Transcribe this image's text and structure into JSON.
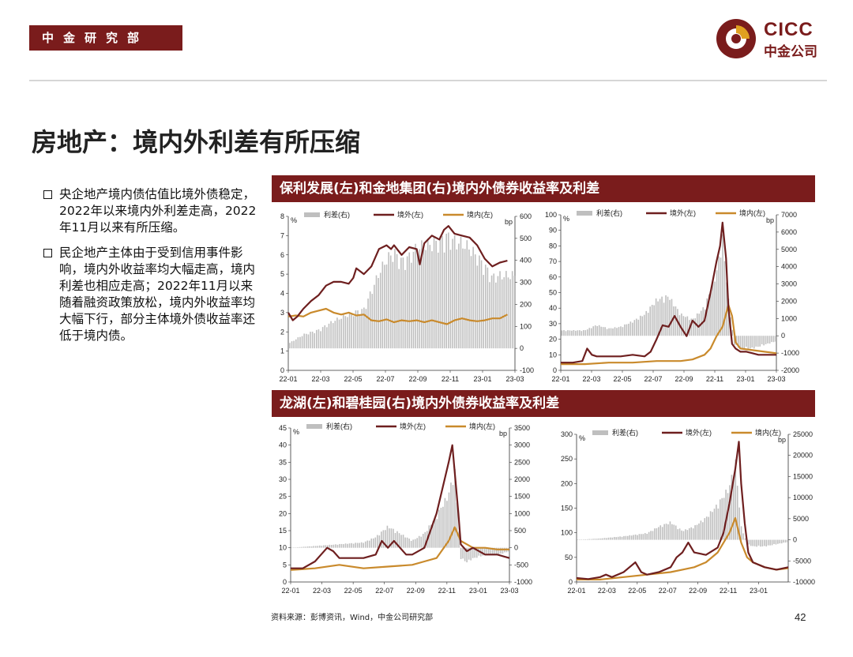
{
  "header": {
    "dept": "中金研究部",
    "logo_en": "CICC",
    "logo_cn": "中金公司"
  },
  "title": "房地产：境内外利差有所压缩",
  "bullets": [
    "央企地产境内债估值比境外债稳定，2022年以来境内外利差走高，2022年11月以来有所压缩。",
    "民企地产主体由于受到信用事件影响，境内外收益率均大幅走高，境内利差也相应走高；2022年11月以来随着融资政策放松，境内外收益率均大幅下行，部分主体境外债收益率还低于境内债。"
  ],
  "banners": {
    "top": "保利发展(左)和金地集团(右)境内外债券收益率及利差",
    "bottom": "龙湖(左)和碧桂园(右)境内外债券收益率及利差"
  },
  "source": "资料来源：彭博资讯，Wind，中金公司研究部",
  "page_number": "42",
  "colors": {
    "brand": "#7a1c1c",
    "offshore": "#6e1f1f",
    "onshore": "#c98a2c",
    "spread": "#bfbfbf"
  },
  "chart_data": [
    {
      "id": "poly",
      "type": "line",
      "series_names": {
        "spread": "利差(右)",
        "offshore": "境外(左)",
        "onshore": "境内(左)"
      },
      "left_unit": "%",
      "right_unit": "bp",
      "ylim": [
        0,
        8
      ],
      "y_ticks": [
        0,
        1,
        2,
        3,
        4,
        5,
        6,
        7,
        8
      ],
      "y2lim": [
        -100,
        600
      ],
      "y2_ticks": [
        -100,
        0,
        100,
        200,
        300,
        400,
        500,
        600
      ],
      "x_ticks": [
        "22-01",
        "22-03",
        "22-05",
        "22-07",
        "22-09",
        "22-11",
        "23-01",
        "23-03"
      ],
      "offshore": [
        [
          0,
          3.0
        ],
        [
          0.3,
          2.6
        ],
        [
          0.6,
          2.8
        ],
        [
          1,
          3.2
        ],
        [
          1.5,
          3.6
        ],
        [
          2,
          3.9
        ],
        [
          2.5,
          4.4
        ],
        [
          3,
          4.6
        ],
        [
          3.5,
          4.6
        ],
        [
          4,
          4.5
        ],
        [
          4.3,
          4.8
        ],
        [
          4.5,
          5.3
        ],
        [
          5,
          5.0
        ],
        [
          5.5,
          5.4
        ],
        [
          6,
          6.3
        ],
        [
          6.5,
          6.5
        ],
        [
          6.8,
          6.3
        ],
        [
          7,
          6.5
        ],
        [
          7.5,
          6.0
        ],
        [
          8,
          6.4
        ],
        [
          8.5,
          6.3
        ],
        [
          8.7,
          5.5
        ],
        [
          9,
          6.6
        ],
        [
          9.5,
          7.0
        ],
        [
          10,
          6.8
        ],
        [
          10.3,
          7.3
        ],
        [
          10.6,
          7.5
        ],
        [
          11,
          7.1
        ],
        [
          11.5,
          7.0
        ],
        [
          12,
          6.9
        ],
        [
          12.5,
          6.5
        ],
        [
          13,
          5.8
        ],
        [
          13.5,
          5.4
        ],
        [
          14,
          5.6
        ],
        [
          14.5,
          5.7
        ]
      ],
      "onshore": [
        [
          0,
          2.8
        ],
        [
          0.5,
          2.85
        ],
        [
          1,
          2.8
        ],
        [
          1.5,
          3.0
        ],
        [
          2,
          3.1
        ],
        [
          2.5,
          3.2
        ],
        [
          3,
          3.0
        ],
        [
          3.5,
          2.9
        ],
        [
          4,
          3.0
        ],
        [
          4.5,
          2.85
        ],
        [
          5,
          2.9
        ],
        [
          5.5,
          2.6
        ],
        [
          6,
          2.55
        ],
        [
          6.5,
          2.65
        ],
        [
          7,
          2.5
        ],
        [
          7.5,
          2.6
        ],
        [
          8,
          2.55
        ],
        [
          8.5,
          2.6
        ],
        [
          9,
          2.5
        ],
        [
          9.5,
          2.6
        ],
        [
          10,
          2.5
        ],
        [
          10.5,
          2.4
        ],
        [
          11,
          2.6
        ],
        [
          11.5,
          2.7
        ],
        [
          12,
          2.6
        ],
        [
          12.5,
          2.55
        ],
        [
          13,
          2.6
        ],
        [
          13.5,
          2.7
        ],
        [
          14,
          2.7
        ],
        [
          14.5,
          2.9
        ]
      ],
      "spread": [
        [
          0,
          20
        ],
        [
          1,
          60
        ],
        [
          2,
          80
        ],
        [
          3,
          120
        ],
        [
          4,
          150
        ],
        [
          5,
          170
        ],
        [
          5.5,
          250
        ],
        [
          6,
          330
        ],
        [
          6.5,
          390
        ],
        [
          7,
          420
        ],
        [
          7.5,
          380
        ],
        [
          8,
          400
        ],
        [
          8.5,
          440
        ],
        [
          9,
          450
        ],
        [
          9.5,
          460
        ],
        [
          10,
          470
        ],
        [
          10.5,
          490
        ],
        [
          11,
          470
        ],
        [
          11.5,
          460
        ],
        [
          12,
          440
        ],
        [
          12.5,
          400
        ],
        [
          13,
          360
        ],
        [
          13.5,
          310
        ],
        [
          14,
          320
        ],
        [
          14.5,
          320
        ]
      ]
    },
    {
      "id": "gemdale",
      "type": "line",
      "series_names": {
        "spread": "利差(右)",
        "offshore": "境外(左)",
        "onshore": "境内(左)"
      },
      "left_unit": "%",
      "right_unit": "bp",
      "ylim": [
        0,
        100
      ],
      "y_ticks": [
        0,
        10,
        20,
        30,
        40,
        50,
        60,
        70,
        80,
        90,
        100
      ],
      "y2lim": [
        -2000,
        7000
      ],
      "y2_ticks": [
        -2000,
        -1000,
        0,
        1000,
        2000,
        3000,
        4000,
        5000,
        6000,
        7000
      ],
      "x_ticks": [
        "22-01",
        "22-03",
        "22-05",
        "22-07",
        "22-09",
        "22-11",
        "23-01",
        "23-03"
      ],
      "offshore": [
        [
          0,
          5
        ],
        [
          1,
          5
        ],
        [
          1.8,
          6
        ],
        [
          2.2,
          14
        ],
        [
          2.6,
          10
        ],
        [
          3,
          9
        ],
        [
          4,
          9
        ],
        [
          5,
          9
        ],
        [
          6,
          10
        ],
        [
          7,
          9
        ],
        [
          7.5,
          12
        ],
        [
          8,
          20
        ],
        [
          8.5,
          29
        ],
        [
          9,
          28
        ],
        [
          9.5,
          35
        ],
        [
          10,
          28
        ],
        [
          10.5,
          22
        ],
        [
          11,
          32
        ],
        [
          11.5,
          28
        ],
        [
          12,
          32
        ],
        [
          12.5,
          50
        ],
        [
          13,
          70
        ],
        [
          13.3,
          80
        ],
        [
          13.5,
          95
        ],
        [
          13.8,
          72
        ],
        [
          14,
          40
        ],
        [
          14.3,
          17
        ],
        [
          14.6,
          14
        ],
        [
          15,
          12
        ],
        [
          15.5,
          12
        ],
        [
          16,
          11
        ],
        [
          16.5,
          10
        ],
        [
          17,
          10
        ],
        [
          17.5,
          10
        ],
        [
          18,
          10
        ]
      ],
      "onshore": [
        [
          0,
          4
        ],
        [
          2,
          4
        ],
        [
          4,
          5
        ],
        [
          6,
          5
        ],
        [
          8,
          6
        ],
        [
          10,
          6
        ],
        [
          11,
          7
        ],
        [
          12,
          10
        ],
        [
          12.5,
          14
        ],
        [
          13,
          22
        ],
        [
          13.5,
          28
        ],
        [
          14,
          42
        ],
        [
          14.3,
          35
        ],
        [
          14.6,
          18
        ],
        [
          15,
          14
        ],
        [
          16,
          13
        ],
        [
          17,
          12
        ],
        [
          18,
          11
        ]
      ],
      "spread": [
        [
          0,
          300
        ],
        [
          2,
          300
        ],
        [
          3,
          600
        ],
        [
          4,
          400
        ],
        [
          5,
          500
        ],
        [
          6,
          800
        ],
        [
          7,
          1200
        ],
        [
          8,
          2000
        ],
        [
          9,
          2200
        ],
        [
          10,
          1200
        ],
        [
          11,
          900
        ],
        [
          12,
          1600
        ],
        [
          13,
          3500
        ],
        [
          13.5,
          5500
        ],
        [
          14,
          2000
        ],
        [
          14.5,
          -500
        ],
        [
          15,
          -700
        ],
        [
          16,
          -700
        ],
        [
          17,
          -500
        ],
        [
          18,
          -300
        ]
      ]
    },
    {
      "id": "longfor",
      "type": "line",
      "series_names": {
        "spread": "利差(右)",
        "offshore": "境外(左)",
        "onshore": "境内(左)"
      },
      "left_unit": "%",
      "right_unit": "bp",
      "ylim": [
        0,
        45
      ],
      "y_ticks": [
        0,
        5,
        10,
        15,
        20,
        25,
        30,
        35,
        40,
        45
      ],
      "y2lim": [
        -1000,
        3500
      ],
      "y2_ticks": [
        -1000,
        -500,
        0,
        500,
        1000,
        1500,
        2000,
        2500,
        3000,
        3500
      ],
      "x_ticks": [
        "22-01",
        "22-03",
        "22-05",
        "22-07",
        "22-09",
        "22-11",
        "23-01",
        "23-03"
      ],
      "offshore": [
        [
          0,
          4
        ],
        [
          1,
          4
        ],
        [
          2,
          6
        ],
        [
          2.5,
          8
        ],
        [
          3,
          10
        ],
        [
          3.5,
          9
        ],
        [
          4,
          7
        ],
        [
          5,
          7
        ],
        [
          6,
          7
        ],
        [
          7,
          8
        ],
        [
          7.5,
          12
        ],
        [
          8,
          10
        ],
        [
          8.5,
          12
        ],
        [
          9,
          10
        ],
        [
          9.5,
          8
        ],
        [
          10,
          8
        ],
        [
          11,
          10
        ],
        [
          12,
          20
        ],
        [
          13,
          35
        ],
        [
          13.3,
          40
        ],
        [
          13.8,
          20
        ],
        [
          14,
          11
        ],
        [
          14.5,
          9
        ],
        [
          15,
          10
        ],
        [
          16,
          8
        ],
        [
          17,
          8
        ],
        [
          18,
          7
        ]
      ],
      "onshore": [
        [
          0,
          3.5
        ],
        [
          2,
          4
        ],
        [
          4,
          5
        ],
        [
          6,
          4
        ],
        [
          8,
          4.5
        ],
        [
          10,
          5
        ],
        [
          11,
          6
        ],
        [
          12,
          7
        ],
        [
          13,
          12
        ],
        [
          13.5,
          16
        ],
        [
          14,
          12
        ],
        [
          14.5,
          11
        ],
        [
          15,
          10
        ],
        [
          16,
          10
        ],
        [
          17,
          9.5
        ],
        [
          18,
          9.5
        ]
      ],
      "spread": [
        [
          0,
          0
        ],
        [
          2,
          50
        ],
        [
          4,
          100
        ],
        [
          6,
          150
        ],
        [
          7,
          300
        ],
        [
          8,
          600
        ],
        [
          9,
          400
        ],
        [
          10,
          200
        ],
        [
          11,
          400
        ],
        [
          12,
          900
        ],
        [
          13,
          1500
        ],
        [
          13.5,
          2200
        ],
        [
          14,
          -300
        ],
        [
          14.5,
          -400
        ],
        [
          15,
          -300
        ],
        [
          16,
          -200
        ],
        [
          17,
          -200
        ],
        [
          18,
          -100
        ]
      ]
    },
    {
      "id": "countrygarden",
      "type": "line",
      "series_names": {
        "spread": "利差(右)",
        "offshore": "境外(左)",
        "onshore": "境内(左)"
      },
      "left_unit": "%",
      "right_unit": "bp",
      "ylim": [
        0,
        300
      ],
      "y_ticks": [
        0,
        50,
        100,
        150,
        200,
        250,
        300
      ],
      "y2lim": [
        -10000,
        25000
      ],
      "y2_ticks": [
        -10000,
        -5000,
        0,
        5000,
        10000,
        15000,
        20000,
        25000
      ],
      "x_ticks": [
        "22-01",
        "22-03",
        "22-05",
        "22-07",
        "22-09",
        "22-11",
        "23-01"
      ],
      "offshore": [
        [
          0,
          8
        ],
        [
          1,
          6
        ],
        [
          2,
          10
        ],
        [
          2.5,
          15
        ],
        [
          3,
          10
        ],
        [
          4,
          20
        ],
        [
          4.5,
          30
        ],
        [
          5,
          40
        ],
        [
          5.5,
          20
        ],
        [
          6,
          15
        ],
        [
          7,
          20
        ],
        [
          8,
          30
        ],
        [
          8.5,
          50
        ],
        [
          9,
          60
        ],
        [
          9.5,
          80
        ],
        [
          10,
          60
        ],
        [
          11,
          55
        ],
        [
          12,
          70
        ],
        [
          12.5,
          100
        ],
        [
          13,
          160
        ],
        [
          13.5,
          230
        ],
        [
          13.8,
          285
        ],
        [
          14,
          200
        ],
        [
          14.3,
          120
        ],
        [
          14.6,
          60
        ],
        [
          15,
          40
        ],
        [
          16,
          30
        ],
        [
          17,
          25
        ],
        [
          18,
          30
        ]
      ],
      "onshore": [
        [
          0,
          5
        ],
        [
          2,
          5
        ],
        [
          4,
          10
        ],
        [
          6,
          15
        ],
        [
          8,
          20
        ],
        [
          9,
          25
        ],
        [
          10,
          30
        ],
        [
          11,
          40
        ],
        [
          12,
          60
        ],
        [
          13,
          100
        ],
        [
          13.5,
          130
        ],
        [
          14,
          80
        ],
        [
          14.5,
          50
        ],
        [
          15,
          40
        ],
        [
          16,
          30
        ],
        [
          17,
          25
        ],
        [
          18,
          28
        ]
      ],
      "spread": [
        [
          0,
          0
        ],
        [
          2,
          300
        ],
        [
          4,
          800
        ],
        [
          6,
          1500
        ],
        [
          7,
          3000
        ],
        [
          8,
          4000
        ],
        [
          9,
          2000
        ],
        [
          10,
          3000
        ],
        [
          11,
          5000
        ],
        [
          12,
          8000
        ],
        [
          13,
          12000
        ],
        [
          13.5,
          18000
        ],
        [
          14,
          3000
        ],
        [
          14.5,
          -1000
        ],
        [
          15,
          -1500
        ],
        [
          16,
          -1500
        ],
        [
          17,
          -1000
        ],
        [
          18,
          -500
        ]
      ]
    }
  ]
}
